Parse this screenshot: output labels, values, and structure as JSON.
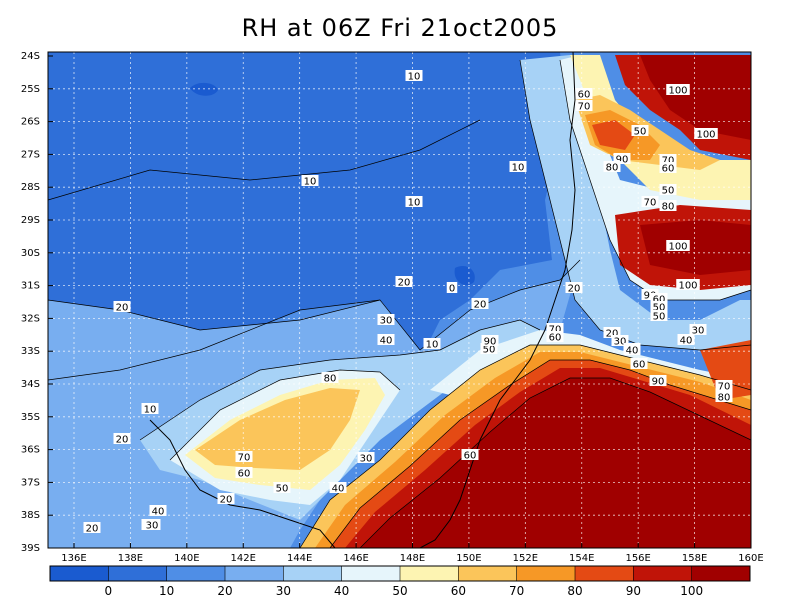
{
  "title": "RH at 06Z Fri 21oct2005",
  "map": {
    "lat_labels": [
      "24S",
      "25S",
      "26S",
      "27S",
      "28S",
      "29S",
      "30S",
      "31S",
      "32S",
      "33S",
      "34S",
      "35S",
      "36S",
      "37S",
      "38S",
      "39S"
    ],
    "lon_labels": [
      "136E",
      "138E",
      "140E",
      "142E",
      "144E",
      "146E",
      "148E",
      "150E",
      "152E",
      "154E",
      "156E",
      "158E",
      "160E"
    ],
    "contour_labels": [
      "10",
      "60",
      "70",
      "100",
      "50",
      "100",
      "90",
      "80",
      "70",
      "60",
      "10",
      "50",
      "10",
      "10",
      "70",
      "80",
      "100",
      "20",
      "0",
      "100",
      "20",
      "90",
      "60",
      "50",
      "20",
      "50",
      "30",
      "30",
      "20",
      "40",
      "70",
      "60",
      "20",
      "30",
      "40",
      "10",
      "40",
      "50",
      "60",
      "30",
      "40",
      "50",
      "90",
      "80",
      "70",
      "80",
      "60",
      "10",
      "20",
      "20",
      "70",
      "60",
      "30",
      "50",
      "40",
      "90",
      "40",
      "20",
      "30"
    ],
    "grid": true,
    "coastline": true
  },
  "colorbar": {
    "labels": [
      "0",
      "10",
      "20",
      "30",
      "40",
      "50",
      "60",
      "70",
      "80",
      "90",
      "100"
    ],
    "colors": [
      "#1a5bd0",
      "#2f6fd8",
      "#4f8ee6",
      "#78aef0",
      "#a7d2f6",
      "#e6f5fb",
      "#fdf4b2",
      "#fbc55a",
      "#f69826",
      "#e44a14",
      "#c01408",
      "#a00000"
    ]
  },
  "chart_data": {
    "type": "heatmap",
    "title": "RH at 06Z Fri 21oct2005",
    "x": [
      "136E",
      "138E",
      "140E",
      "142E",
      "144E",
      "146E",
      "148E",
      "150E",
      "152E",
      "154E",
      "156E",
      "158E",
      "160E"
    ],
    "y": [
      "24S",
      "25S",
      "26S",
      "27S",
      "28S",
      "29S",
      "30S",
      "31S",
      "32S",
      "33S",
      "34S",
      "35S",
      "36S",
      "37S",
      "38S",
      "39S"
    ],
    "levels": [
      0,
      10,
      20,
      30,
      40,
      50,
      60,
      70,
      80,
      90,
      100
    ],
    "grid": true
  }
}
